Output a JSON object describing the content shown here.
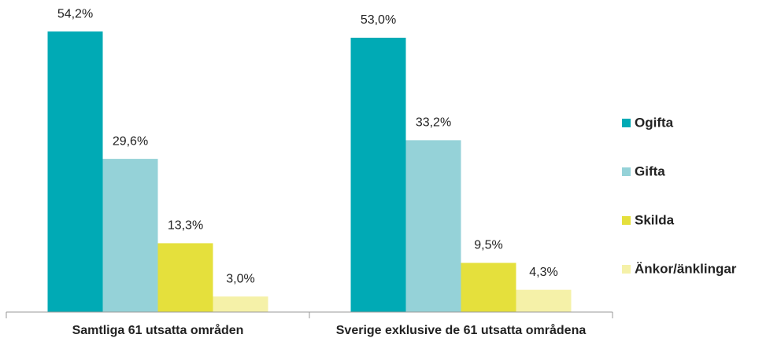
{
  "chart_data": {
    "type": "bar",
    "categories": [
      "Samtliga 61 utsatta områden",
      "Sverige exklusive de 61 utsatta områdena"
    ],
    "series": [
      {
        "name": "Ogifta",
        "color": "#00aab5",
        "values": [
          54.2,
          53.0
        ],
        "value_labels": [
          "54,2%",
          "53,0%"
        ]
      },
      {
        "name": "Gifta",
        "color": "#95d2d8",
        "values": [
          29.6,
          33.2
        ],
        "value_labels": [
          "29,6%",
          "33,2%"
        ]
      },
      {
        "name": "Skilda",
        "color": "#e5e03c",
        "values": [
          13.3,
          9.5
        ],
        "value_labels": [
          "13,3%",
          "9,5%"
        ]
      },
      {
        "name": "Änkor/änklingar",
        "color": "#f5f1a8",
        "values": [
          3.0,
          4.3
        ],
        "value_labels": [
          "3,0%",
          "4,3%"
        ]
      }
    ],
    "legend": "right"
  }
}
